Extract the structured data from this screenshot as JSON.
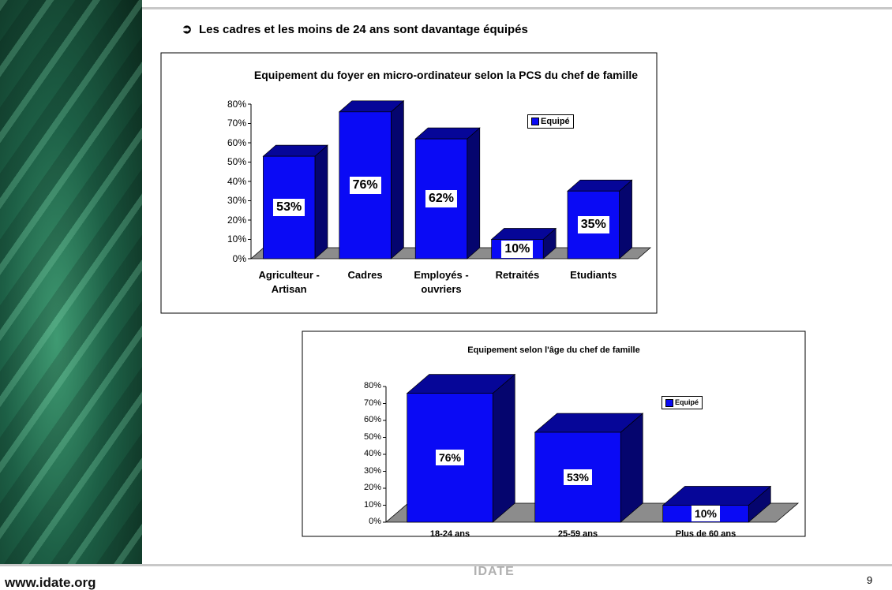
{
  "header": {
    "bullet": "Les cadres et les moins de 24 ans sont davantage équipés"
  },
  "chart_data": [
    {
      "type": "bar",
      "title": "Equipement du foyer en micro-ordinateur selon la PCS du chef de famille",
      "categories": [
        "Agriculteur - Artisan",
        "Cadres",
        "Employés - ouvriers",
        "Retraités",
        "Etudiants"
      ],
      "series": [
        {
          "name": "Equipé",
          "color": "#0a0af5",
          "values": [
            53,
            76,
            62,
            10,
            35
          ],
          "value_labels": [
            "53%",
            "76%",
            "62%",
            "10%",
            "35%"
          ]
        }
      ],
      "ylim": [
        0,
        80
      ],
      "yticks": [
        {
          "value": 0,
          "label": "0%"
        },
        {
          "value": 10,
          "label": "10%"
        },
        {
          "value": 20,
          "label": "20%"
        },
        {
          "value": 30,
          "label": "30%"
        },
        {
          "value": 40,
          "label": "40%"
        },
        {
          "value": 50,
          "label": "50%"
        },
        {
          "value": 60,
          "label": "60%"
        },
        {
          "value": 70,
          "label": "70%"
        },
        {
          "value": 80,
          "label": "80%"
        }
      ],
      "legend": "top-right"
    },
    {
      "type": "bar",
      "title": "Equipement selon l'âge du chef de famille",
      "categories": [
        "18-24 ans",
        "25-59 ans",
        "Plus de 60 ans"
      ],
      "series": [
        {
          "name": "Equipé",
          "color": "#0a0af5",
          "values": [
            76,
            53,
            10
          ],
          "value_labels": [
            "76%",
            "53%",
            "10%"
          ]
        }
      ],
      "ylim": [
        0,
        80
      ],
      "yticks": [
        {
          "value": 0,
          "label": "0%"
        },
        {
          "value": 10,
          "label": "10%"
        },
        {
          "value": 20,
          "label": "20%"
        },
        {
          "value": 30,
          "label": "30%"
        },
        {
          "value": 40,
          "label": "40%"
        },
        {
          "value": 50,
          "label": "50%"
        },
        {
          "value": 60,
          "label": "60%"
        },
        {
          "value": 70,
          "label": "70%"
        },
        {
          "value": 80,
          "label": "80%"
        }
      ],
      "legend": "top-right"
    }
  ],
  "footer": {
    "website": "www.idate.org",
    "brand": "IDATE",
    "page": "9"
  }
}
